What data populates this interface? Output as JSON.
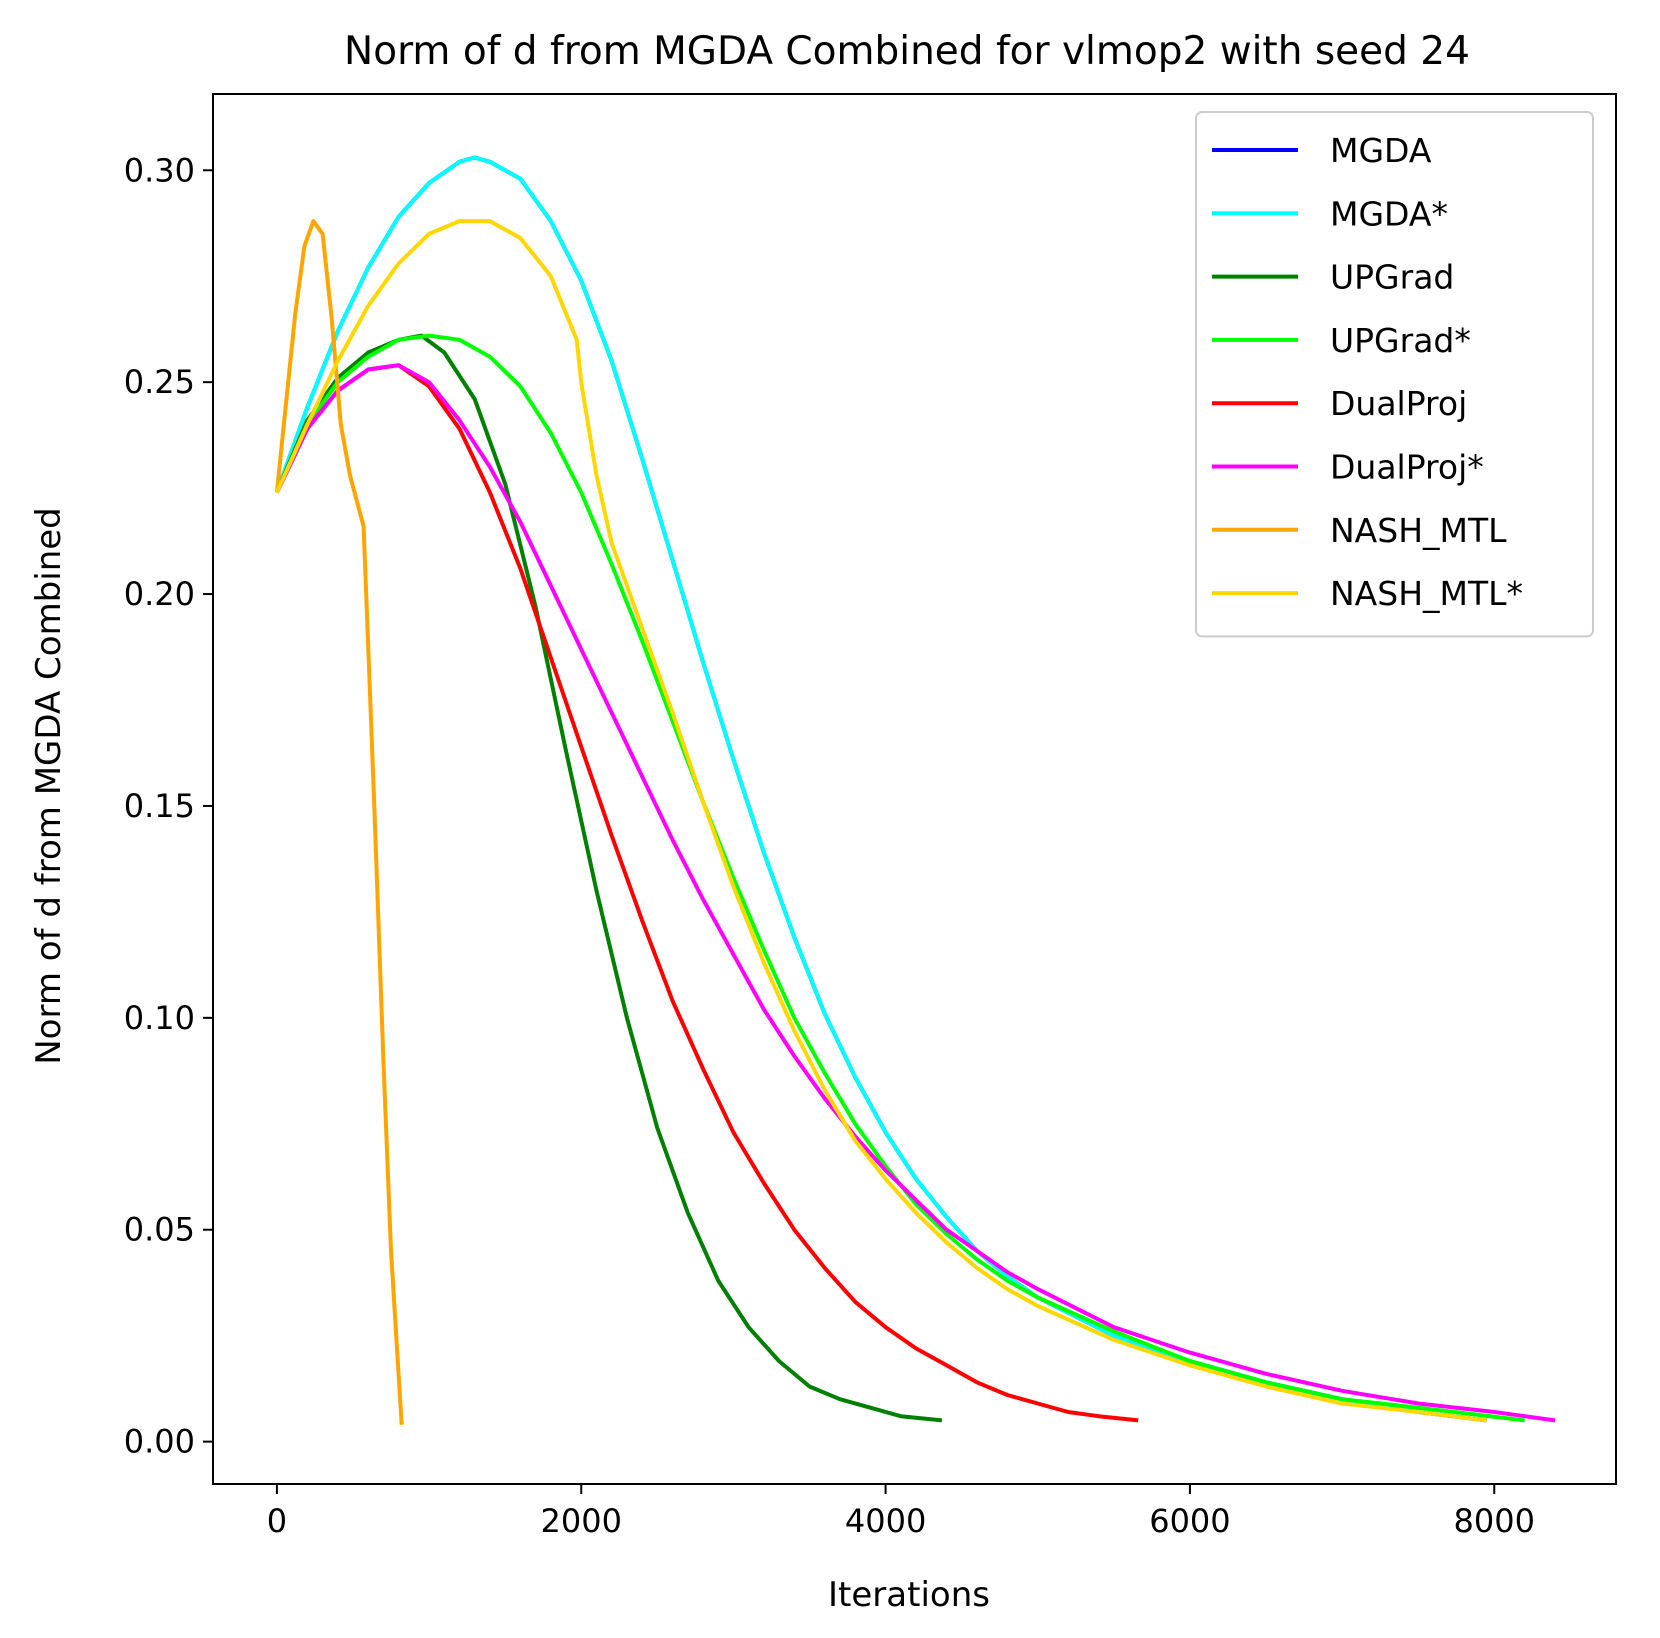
{
  "chart_data": {
    "type": "line",
    "title": "Norm of d from MGDA Combined for vlmop2 with seed 24",
    "xlabel": "Iterations",
    "ylabel": "Norm of d from MGDA Combined",
    "xlim": [
      -420,
      8800
    ],
    "ylim": [
      -0.01,
      0.318
    ],
    "xticks": [
      0,
      2000,
      4000,
      6000,
      8000
    ],
    "xtick_labels": [
      "0",
      "2000",
      "4000",
      "6000",
      "8000"
    ],
    "yticks": [
      0.0,
      0.05,
      0.1,
      0.15,
      0.2,
      0.25,
      0.3
    ],
    "ytick_labels": [
      "0.00",
      "0.05",
      "0.10",
      "0.15",
      "0.20",
      "0.25",
      "0.30"
    ],
    "grid": false,
    "legend_position": "top-right",
    "series": [
      {
        "name": "MGDA",
        "color": "#0000ff",
        "x": [
          0,
          200,
          400,
          600,
          800,
          1000,
          1200,
          1300,
          1400,
          1600,
          1800,
          2000,
          2200,
          2400,
          2600,
          2800,
          3000,
          3200,
          3400,
          3600,
          3800,
          4000,
          4200,
          4400,
          4600,
          4800,
          5000,
          5500,
          6000,
          6500,
          7000,
          7500,
          7950
        ],
        "y": [
          0.224,
          0.244,
          0.262,
          0.277,
          0.289,
          0.297,
          0.302,
          0.303,
          0.302,
          0.298,
          0.288,
          0.274,
          0.255,
          0.232,
          0.208,
          0.184,
          0.161,
          0.139,
          0.119,
          0.101,
          0.086,
          0.073,
          0.062,
          0.053,
          0.045,
          0.039,
          0.034,
          0.025,
          0.019,
          0.014,
          0.01,
          0.007,
          0.005
        ]
      },
      {
        "name": "MGDA*",
        "color": "#00ffff",
        "x": [
          0,
          200,
          400,
          600,
          800,
          1000,
          1200,
          1300,
          1400,
          1600,
          1800,
          2000,
          2200,
          2400,
          2600,
          2800,
          3000,
          3200,
          3400,
          3600,
          3800,
          4000,
          4200,
          4400,
          4600,
          4800,
          5000,
          5500,
          6000,
          6500,
          7000,
          7500,
          7950
        ],
        "y": [
          0.224,
          0.244,
          0.262,
          0.277,
          0.289,
          0.297,
          0.302,
          0.303,
          0.302,
          0.298,
          0.288,
          0.274,
          0.255,
          0.232,
          0.208,
          0.184,
          0.161,
          0.139,
          0.119,
          0.101,
          0.086,
          0.073,
          0.062,
          0.053,
          0.045,
          0.039,
          0.034,
          0.025,
          0.019,
          0.014,
          0.01,
          0.007,
          0.005
        ]
      },
      {
        "name": "UPGrad",
        "color": "#008000",
        "x": [
          0,
          200,
          400,
          600,
          800,
          950,
          1100,
          1300,
          1500,
          1700,
          1900,
          2100,
          2300,
          2500,
          2700,
          2900,
          3100,
          3300,
          3500,
          3700,
          3900,
          4100,
          4370
        ],
        "y": [
          0.224,
          0.241,
          0.251,
          0.257,
          0.26,
          0.261,
          0.257,
          0.246,
          0.226,
          0.197,
          0.163,
          0.13,
          0.1,
          0.074,
          0.054,
          0.038,
          0.027,
          0.019,
          0.013,
          0.01,
          0.008,
          0.006,
          0.005
        ]
      },
      {
        "name": "UPGrad*",
        "color": "#00ff00",
        "x": [
          0,
          200,
          400,
          600,
          800,
          1000,
          1200,
          1400,
          1600,
          1800,
          2000,
          2200,
          2400,
          2600,
          2800,
          3000,
          3200,
          3400,
          3600,
          3800,
          4000,
          4200,
          4400,
          4600,
          4800,
          5000,
          5500,
          6000,
          6500,
          7000,
          7500,
          8200
        ],
        "y": [
          0.224,
          0.24,
          0.25,
          0.256,
          0.26,
          0.261,
          0.26,
          0.256,
          0.249,
          0.238,
          0.224,
          0.207,
          0.189,
          0.17,
          0.151,
          0.133,
          0.116,
          0.1,
          0.087,
          0.075,
          0.065,
          0.056,
          0.049,
          0.043,
          0.038,
          0.034,
          0.026,
          0.019,
          0.014,
          0.01,
          0.008,
          0.005
        ]
      },
      {
        "name": "DualProj",
        "color": "#ff0000",
        "x": [
          0,
          200,
          400,
          600,
          800,
          1000,
          1200,
          1400,
          1600,
          1800,
          2000,
          2200,
          2400,
          2600,
          2800,
          3000,
          3200,
          3400,
          3600,
          3800,
          4000,
          4200,
          4400,
          4600,
          4800,
          5000,
          5200,
          5400,
          5660
        ],
        "y": [
          0.224,
          0.239,
          0.248,
          0.253,
          0.254,
          0.249,
          0.239,
          0.224,
          0.206,
          0.185,
          0.164,
          0.143,
          0.123,
          0.104,
          0.088,
          0.073,
          0.061,
          0.05,
          0.041,
          0.033,
          0.027,
          0.022,
          0.018,
          0.014,
          0.011,
          0.009,
          0.007,
          0.006,
          0.005
        ]
      },
      {
        "name": "DualProj*",
        "color": "#ff00ff",
        "x": [
          0,
          200,
          400,
          600,
          800,
          1000,
          1200,
          1400,
          1600,
          1800,
          2000,
          2200,
          2400,
          2600,
          2800,
          3000,
          3200,
          3400,
          3600,
          3800,
          4000,
          4200,
          4400,
          4600,
          4800,
          5000,
          5500,
          6000,
          6500,
          7000,
          7500,
          8000,
          8400
        ],
        "y": [
          0.224,
          0.239,
          0.248,
          0.253,
          0.254,
          0.25,
          0.241,
          0.23,
          0.217,
          0.202,
          0.187,
          0.172,
          0.157,
          0.142,
          0.128,
          0.115,
          0.102,
          0.091,
          0.081,
          0.072,
          0.064,
          0.057,
          0.05,
          0.045,
          0.04,
          0.036,
          0.027,
          0.021,
          0.016,
          0.012,
          0.009,
          0.007,
          0.005
        ]
      },
      {
        "name": "NASH_MTL",
        "color": "#ffa500",
        "x": [
          0,
          60,
          120,
          180,
          240,
          300,
          360,
          420,
          480,
          570,
          640,
          700,
          750,
          820
        ],
        "y": [
          0.224,
          0.245,
          0.266,
          0.282,
          0.288,
          0.285,
          0.265,
          0.24,
          0.228,
          0.216,
          0.15,
          0.09,
          0.045,
          0.004
        ]
      },
      {
        "name": "NASH_MTL*",
        "color": "#ffd700",
        "x": [
          0,
          200,
          400,
          600,
          800,
          1000,
          1200,
          1400,
          1600,
          1800,
          1970,
          2000,
          2100,
          2200,
          2400,
          2600,
          2800,
          3000,
          3200,
          3400,
          3600,
          3800,
          4000,
          4200,
          4400,
          4600,
          4800,
          5000,
          5500,
          6000,
          6500,
          7000,
          7500,
          7950
        ],
        "y": [
          0.224,
          0.24,
          0.255,
          0.268,
          0.278,
          0.285,
          0.288,
          0.288,
          0.284,
          0.275,
          0.26,
          0.25,
          0.228,
          0.212,
          0.192,
          0.172,
          0.151,
          0.131,
          0.113,
          0.097,
          0.083,
          0.071,
          0.062,
          0.054,
          0.047,
          0.041,
          0.036,
          0.032,
          0.024,
          0.018,
          0.013,
          0.009,
          0.007,
          0.005
        ]
      }
    ]
  }
}
